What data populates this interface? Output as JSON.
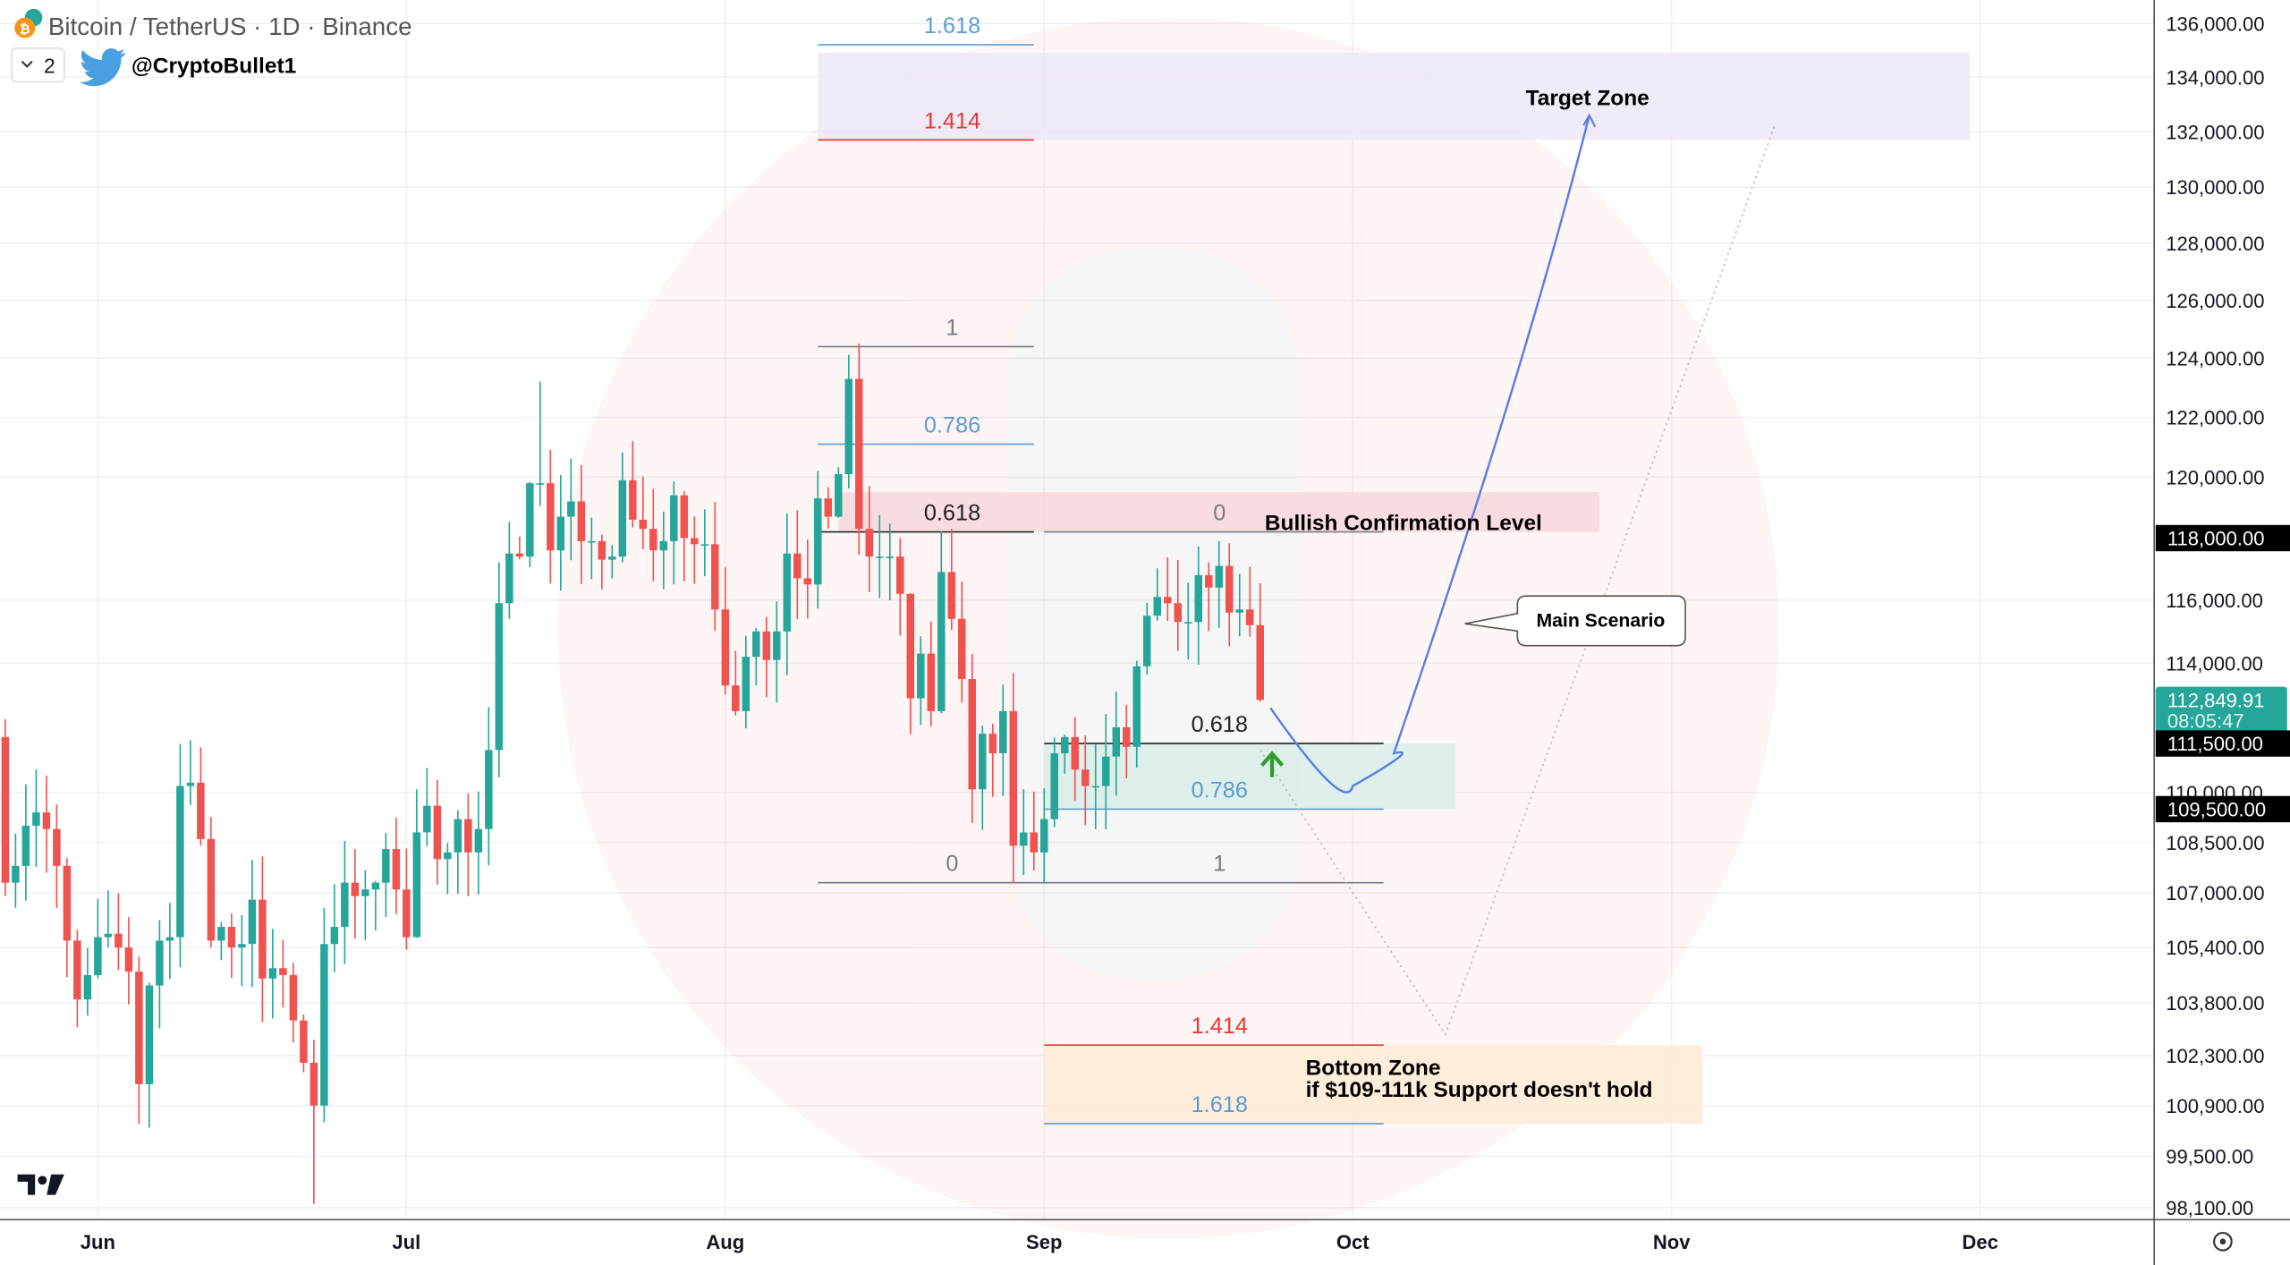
{
  "header": {
    "title": "Bitcoin / TetherUS · 1D · Binance",
    "indicator_count": "2",
    "author": "@CryptoBullet1"
  },
  "colors": {
    "up": "#26a69a",
    "down": "#ef5350",
    "fib_blue": "#5b9bd5",
    "fib_red": "#e53935",
    "fib_grey": "#787b86",
    "target_zone": "#ede7f6",
    "bullish_zone": "#f8d7dc",
    "support_zone": "#d9ede9",
    "bottom_zone": "#fdebd5",
    "scenario_line": "#5b7fe0",
    "price_tag": "#26a69a"
  },
  "chart_data": {
    "type": "candlestick",
    "symbol": "BTCUSDT",
    "interval": "1D",
    "y_scale": "log",
    "ylim": [
      98100,
      136000
    ],
    "y_ticks": [
      "136,000.00",
      "134,000.00",
      "132,000.00",
      "130,000.00",
      "128,000.00",
      "126,000.00",
      "124,000.00",
      "122,000.00",
      "120,000.00",
      "116,000.00",
      "114,000.00",
      "110,000.00",
      "108,500.00",
      "107,000.00",
      "105,400.00",
      "103,800.00",
      "102,300.00",
      "100,900.00",
      "99,500.00",
      "98,100.00"
    ],
    "x_ticks": [
      {
        "label": "Jun",
        "date": "2025-06-01"
      },
      {
        "label": "Jul",
        "date": "2025-07-01"
      },
      {
        "label": "Aug",
        "date": "2025-08-01"
      },
      {
        "label": "Sep",
        "date": "2025-09-01"
      },
      {
        "label": "Oct",
        "date": "2025-10-01"
      },
      {
        "label": "Nov",
        "date": "2025-11-01"
      },
      {
        "label": "Dec",
        "date": "2025-12-01"
      }
    ],
    "closes": [
      [
        "2025-05-22",
        111700
      ],
      [
        "2025-05-23",
        107300
      ],
      [
        "2025-05-24",
        107800
      ],
      [
        "2025-05-25",
        109000
      ],
      [
        "2025-05-26",
        109400
      ],
      [
        "2025-05-27",
        108900
      ],
      [
        "2025-05-28",
        107800
      ],
      [
        "2025-05-29",
        105600
      ],
      [
        "2025-05-30",
        103900
      ],
      [
        "2025-05-31",
        104600
      ],
      [
        "2025-06-01",
        105700
      ],
      [
        "2025-06-02",
        105800
      ],
      [
        "2025-06-03",
        105400
      ],
      [
        "2025-06-04",
        104700
      ],
      [
        "2025-06-05",
        101500
      ],
      [
        "2025-06-06",
        104300
      ],
      [
        "2025-06-07",
        105600
      ],
      [
        "2025-06-08",
        105700
      ],
      [
        "2025-06-09",
        110200
      ],
      [
        "2025-06-10",
        110300
      ],
      [
        "2025-06-11",
        108600
      ],
      [
        "2025-06-12",
        105600
      ],
      [
        "2025-06-13",
        106000
      ],
      [
        "2025-06-14",
        105400
      ],
      [
        "2025-06-15",
        105500
      ],
      [
        "2025-06-16",
        106800
      ],
      [
        "2025-06-17",
        104500
      ],
      [
        "2025-06-18",
        104800
      ],
      [
        "2025-06-19",
        104600
      ],
      [
        "2025-06-20",
        103300
      ],
      [
        "2025-06-21",
        102100
      ],
      [
        "2025-06-22",
        100900
      ],
      [
        "2025-06-23",
        105500
      ],
      [
        "2025-06-24",
        106000
      ],
      [
        "2025-06-25",
        107300
      ],
      [
        "2025-06-26",
        106900
      ],
      [
        "2025-06-27",
        107100
      ],
      [
        "2025-06-28",
        107300
      ],
      [
        "2025-06-29",
        108300
      ],
      [
        "2025-06-30",
        107100
      ],
      [
        "2025-07-01",
        105700
      ],
      [
        "2025-07-02",
        108800
      ],
      [
        "2025-07-03",
        109600
      ],
      [
        "2025-07-04",
        108000
      ],
      [
        "2025-07-05",
        108200
      ],
      [
        "2025-07-06",
        109200
      ],
      [
        "2025-07-07",
        108200
      ],
      [
        "2025-07-08",
        108900
      ],
      [
        "2025-07-09",
        111300
      ],
      [
        "2025-07-10",
        115900
      ],
      [
        "2025-07-11",
        117500
      ],
      [
        "2025-07-12",
        117400
      ],
      [
        "2025-07-13",
        119800
      ],
      [
        "2025-07-14",
        119800
      ],
      [
        "2025-07-15",
        117600
      ],
      [
        "2025-07-16",
        118700
      ],
      [
        "2025-07-17",
        119200
      ],
      [
        "2025-07-18",
        117900
      ],
      [
        "2025-07-19",
        117900
      ],
      [
        "2025-07-20",
        117300
      ],
      [
        "2025-07-21",
        117400
      ],
      [
        "2025-07-22",
        119900
      ],
      [
        "2025-07-23",
        118600
      ],
      [
        "2025-07-24",
        118300
      ],
      [
        "2025-07-25",
        117600
      ],
      [
        "2025-07-26",
        117900
      ],
      [
        "2025-07-27",
        119400
      ],
      [
        "2025-07-28",
        118000
      ],
      [
        "2025-07-29",
        117800
      ],
      [
        "2025-07-30",
        117800
      ],
      [
        "2025-07-31",
        115700
      ],
      [
        "2025-08-01",
        113300
      ],
      [
        "2025-08-02",
        112500
      ],
      [
        "2025-08-03",
        114200
      ],
      [
        "2025-08-04",
        115000
      ],
      [
        "2025-08-05",
        114100
      ],
      [
        "2025-08-06",
        115000
      ],
      [
        "2025-08-07",
        117500
      ],
      [
        "2025-08-08",
        116700
      ],
      [
        "2025-08-09",
        116500
      ],
      [
        "2025-08-10",
        119300
      ],
      [
        "2025-08-11",
        118700
      ],
      [
        "2025-08-12",
        120100
      ],
      [
        "2025-08-13",
        123300
      ],
      [
        "2025-08-14",
        118300
      ],
      [
        "2025-08-15",
        117400
      ],
      [
        "2025-08-16",
        117400
      ],
      [
        "2025-08-17",
        117400
      ],
      [
        "2025-08-18",
        116200
      ],
      [
        "2025-08-19",
        112900
      ],
      [
        "2025-08-20",
        114300
      ],
      [
        "2025-08-21",
        112500
      ],
      [
        "2025-08-22",
        116900
      ],
      [
        "2025-08-23",
        115400
      ],
      [
        "2025-08-24",
        113500
      ],
      [
        "2025-08-25",
        110100
      ],
      [
        "2025-08-26",
        111800
      ],
      [
        "2025-08-27",
        111200
      ],
      [
        "2025-08-28",
        112500
      ],
      [
        "2025-08-29",
        108400
      ],
      [
        "2025-08-30",
        108800
      ],
      [
        "2025-08-31",
        108200
      ],
      [
        "2025-09-01",
        109200
      ],
      [
        "2025-09-02",
        111200
      ],
      [
        "2025-09-03",
        111700
      ],
      [
        "2025-09-04",
        110700
      ],
      [
        "2025-09-05",
        110200
      ],
      [
        "2025-09-06",
        110200
      ],
      [
        "2025-09-07",
        111100
      ],
      [
        "2025-09-08",
        112000
      ],
      [
        "2025-09-09",
        111400
      ],
      [
        "2025-09-10",
        113900
      ],
      [
        "2025-09-11",
        115500
      ],
      [
        "2025-09-12",
        116100
      ],
      [
        "2025-09-13",
        115900
      ],
      [
        "2025-09-14",
        115300
      ],
      [
        "2025-09-15",
        115300
      ],
      [
        "2025-09-16",
        116800
      ],
      [
        "2025-09-17",
        116400
      ],
      [
        "2025-09-18",
        117100
      ],
      [
        "2025-09-19",
        115600
      ],
      [
        "2025-09-20",
        115700
      ],
      [
        "2025-09-21",
        115200
      ],
      [
        "2025-09-22",
        112850
      ]
    ],
    "extremes": [
      {
        "date": "2025-06-22",
        "low": 98200
      },
      {
        "date": "2025-07-14",
        "high": 123200
      },
      {
        "date": "2025-08-14",
        "high": 124500
      },
      {
        "date": "2025-09-01",
        "low": 107300
      },
      {
        "date": "2025-09-18",
        "high": 117900
      }
    ],
    "price_tags": [
      {
        "label": "118,000.00",
        "value": 118000,
        "style": "black"
      },
      {
        "label": "112,849.91",
        "sub": "08:05:47",
        "value": 112849.91,
        "style": "last"
      },
      {
        "label": "111,500.00",
        "value": 111500,
        "style": "black"
      },
      {
        "label": "109,500.00",
        "value": 109500,
        "style": "black"
      }
    ],
    "fib_upper": {
      "from": "2025-08-10",
      "to": "2025-08-31",
      "levels": [
        {
          "label": "1.618",
          "value": 135200,
          "color": "blue"
        },
        {
          "label": "1.414",
          "value": 131700,
          "color": "red"
        },
        {
          "label": "1",
          "value": 124400,
          "color": "grey"
        },
        {
          "label": "0.786",
          "value": 121100,
          "color": "blue"
        },
        {
          "label": "0.618",
          "value": 118200,
          "color": "black"
        },
        {
          "label": "0",
          "value": 107300,
          "color": "grey"
        }
      ]
    },
    "fib_lower": {
      "from": "2025-09-01",
      "to": "2025-10-04",
      "levels": [
        {
          "label": "0",
          "value": 118200,
          "color": "grey"
        },
        {
          "label": "0.618",
          "value": 111500,
          "color": "black"
        },
        {
          "label": "0.786",
          "value": 109500,
          "color": "blue"
        },
        {
          "label": "1",
          "value": 107300,
          "color": "grey"
        },
        {
          "label": "1.414",
          "value": 102600,
          "color": "red"
        },
        {
          "label": "1.618",
          "value": 100400,
          "color": "blue"
        }
      ]
    },
    "zones": [
      {
        "name": "target",
        "label": "Target Zone",
        "from": "2025-08-10",
        "to": "2025-11-30",
        "low": 131700,
        "high": 134900
      },
      {
        "name": "bullish",
        "label": "Bullish Confirmation Level",
        "from": "2025-08-12",
        "to": "2025-10-25",
        "low": 118200,
        "high": 119500
      },
      {
        "name": "support",
        "label": "",
        "from": "2025-09-01",
        "to": "2025-10-11",
        "low": 109500,
        "high": 111500
      },
      {
        "name": "bottom",
        "label": "Bottom Zone",
        "label2": "if $109-111k Support doesn't hold",
        "from": "2025-09-01",
        "to": "2025-11-04",
        "low": 100400,
        "high": 102600
      }
    ],
    "callout": "Main Scenario",
    "main_scenario_path": [
      [
        "2025-09-23",
        112600
      ],
      [
        "2025-10-01",
        110200
      ],
      [
        "2025-10-05",
        111200
      ],
      [
        "2025-10-14",
        118500
      ],
      [
        "2025-10-24",
        132600
      ]
    ],
    "alt_scenario_path": [
      [
        "2025-09-22",
        111300
      ],
      [
        "2025-10-10",
        102900
      ],
      [
        "2025-11-11",
        132200
      ]
    ]
  }
}
